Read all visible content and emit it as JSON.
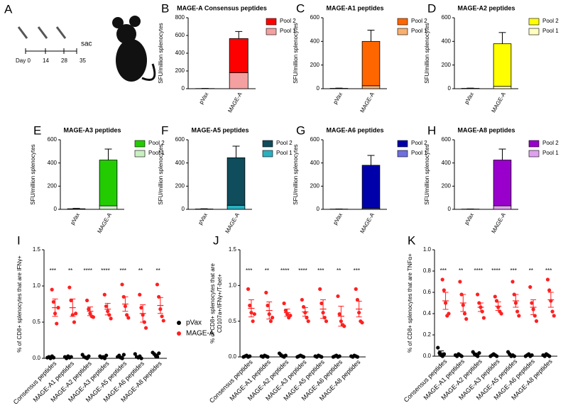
{
  "diagram": {
    "panel": "A",
    "days": [
      "Day 0",
      "14",
      "28",
      "35"
    ],
    "event": "sac"
  },
  "chart_data": [
    {
      "type": "bar",
      "panel": "B",
      "title": "MAGE-A Consensus peptides",
      "y_label": "SFU/million splenocytes",
      "categories": [
        "pVax",
        "MAGE-A"
      ],
      "ylim": [
        0,
        800
      ],
      "yticks": [
        0,
        200,
        400,
        600,
        800
      ],
      "series": [
        {
          "name": "Pool 1",
          "color": "#f4a0a0",
          "values": [
            1,
            180
          ],
          "errors": [
            0,
            15
          ]
        },
        {
          "name": "Pool 2",
          "color": "#ff0000",
          "values": [
            1,
            385
          ],
          "errors": [
            1,
            80
          ]
        }
      ]
    },
    {
      "type": "bar",
      "panel": "C",
      "title": "MAGE-A1 peptides",
      "y_label": "SFU/million splenocytes",
      "categories": [
        "pVax",
        "MAGE-A"
      ],
      "ylim": [
        0,
        600
      ],
      "yticks": [
        0,
        200,
        400,
        600
      ],
      "series": [
        {
          "name": "Pool 1",
          "color": "#f8b070",
          "values": [
            1,
            25
          ],
          "errors": [
            0,
            6
          ]
        },
        {
          "name": "Pool 2",
          "color": "#ff6600",
          "values": [
            2,
            375
          ],
          "errors": [
            2,
            95
          ]
        }
      ]
    },
    {
      "type": "bar",
      "panel": "D",
      "title": "MAGE-A2 peptides",
      "y_label": "SFU/million splenocytes",
      "categories": [
        "pVax",
        "MAGE-A"
      ],
      "ylim": [
        0,
        600
      ],
      "yticks": [
        0,
        200,
        400,
        600
      ],
      "series": [
        {
          "name": "Pool 1",
          "color": "#ffffc0",
          "values": [
            1,
            20
          ],
          "errors": [
            0,
            6
          ]
        },
        {
          "name": "Pool 2",
          "color": "#ffff00",
          "values": [
            2,
            360
          ],
          "errors": [
            2,
            95
          ]
        }
      ]
    },
    {
      "type": "bar",
      "panel": "E",
      "title": "MAGE-A3 peptides",
      "y_label": "SFU/million splenocytes",
      "categories": [
        "pVax",
        "MAGE-A"
      ],
      "ylim": [
        0,
        600
      ],
      "yticks": [
        0,
        200,
        400,
        600
      ],
      "series": [
        {
          "name": "Pool 1",
          "color": "#c8f0c0",
          "values": [
            2,
            30
          ],
          "errors": [
            1,
            8
          ]
        },
        {
          "name": "Pool 2",
          "color": "#22cc00",
          "values": [
            3,
            395
          ],
          "errors": [
            3,
            95
          ]
        }
      ]
    },
    {
      "type": "bar",
      "panel": "F",
      "title": "MAGE-A5 peptides",
      "y_label": "SFU/million splenocytes",
      "categories": [
        "pVax",
        "MAGE-A"
      ],
      "ylim": [
        0,
        600
      ],
      "yticks": [
        0,
        200,
        400,
        600
      ],
      "series": [
        {
          "name": "Pool 1",
          "color": "#2ab0c0",
          "values": [
            1,
            35
          ],
          "errors": [
            0,
            6
          ]
        },
        {
          "name": "Pool 2",
          "color": "#0f4c5c",
          "values": [
            2,
            410
          ],
          "errors": [
            2,
            100
          ]
        }
      ]
    },
    {
      "type": "bar",
      "panel": "G",
      "title": "MAGE-A6 peptides",
      "y_label": "SFU/million splenocytes",
      "categories": [
        "pVax",
        "MAGE-A"
      ],
      "ylim": [
        0,
        600
      ],
      "yticks": [
        0,
        200,
        400,
        600
      ],
      "series": [
        {
          "name": "Pool 1",
          "color": "#6f6fe0",
          "values": [
            1,
            10
          ],
          "errors": [
            0,
            4
          ]
        },
        {
          "name": "Pool 2",
          "color": "#0000aa",
          "values": [
            1,
            370
          ],
          "errors": [
            1,
            85
          ]
        }
      ]
    },
    {
      "type": "bar",
      "panel": "H",
      "title": "MAGE-A8 peptides",
      "y_label": "SFU/million splenocytes",
      "categories": [
        "pVax",
        "MAGE-A"
      ],
      "ylim": [
        0,
        600
      ],
      "yticks": [
        0,
        200,
        400,
        600
      ],
      "series": [
        {
          "name": "Pool 1",
          "color": "#e0a0f0",
          "values": [
            1,
            30
          ],
          "errors": [
            0,
            6
          ]
        },
        {
          "name": "Pool 2",
          "color": "#9900cc",
          "values": [
            1,
            395
          ],
          "errors": [
            1,
            95
          ]
        }
      ]
    },
    {
      "type": "dot",
      "panel": "I",
      "y_label": [
        "% of CD8+ splenocytes that are IFNγ+"
      ],
      "categories": [
        "Consensus peptides",
        "MAGE-A1 peptides",
        "MAGE-A2 peptides",
        "MAGE-A3 peptides",
        "MAGE-A5 peptides",
        "MAGE-A6 peptides",
        "MAGE-A8 peptides"
      ],
      "ylim": [
        0,
        1.5
      ],
      "yticks": [
        {
          "value": 0,
          "label": "0.0"
        },
        0.5,
        {
          "value": 1,
          "label": "1.0"
        },
        1.5
      ],
      "annotations": [
        "***",
        "**",
        "****",
        "****",
        "***",
        "**",
        "**"
      ],
      "series": [
        {
          "name": "pVax",
          "color": "#000000",
          "values": [
            [
              0.01,
              0.02,
              0.0,
              0.03,
              0.01
            ],
            [
              0.02,
              0.0,
              0.03,
              0.01,
              0.02
            ],
            [
              0.05,
              0.02,
              0.01,
              0.0,
              0.03
            ],
            [
              0.03,
              0.01,
              0.02,
              0.0,
              0.04
            ],
            [
              0.02,
              0.04,
              0.01,
              0.0,
              0.05
            ],
            [
              0.06,
              0.02,
              0.01,
              0.03,
              0.0
            ],
            [
              0.08,
              0.06,
              0.03,
              0.02,
              0.07
            ]
          ],
          "means": [
            0.01,
            0.02,
            0.02,
            0.02,
            0.02,
            0.02,
            0.05
          ],
          "errors": [
            0.01,
            0.01,
            0.01,
            0.01,
            0.01,
            0.01,
            0.01
          ]
        },
        {
          "name": "MAGE-A",
          "color": "#ff2020",
          "values": [
            [
              0.95,
              0.78,
              0.62,
              0.48,
              0.7
            ],
            [
              0.98,
              0.8,
              0.6,
              0.5,
              0.62
            ],
            [
              0.8,
              0.68,
              0.62,
              0.58,
              0.57
            ],
            [
              0.88,
              0.72,
              0.65,
              0.6,
              0.55
            ],
            [
              1.02,
              0.85,
              0.72,
              0.6,
              0.56
            ],
            [
              0.88,
              0.7,
              0.6,
              0.5,
              0.42
            ],
            [
              1.02,
              0.85,
              0.68,
              0.58,
              0.52
            ]
          ],
          "means": [
            0.7,
            0.7,
            0.65,
            0.68,
            0.75,
            0.62,
            0.73
          ],
          "errors": [
            0.12,
            0.12,
            0.06,
            0.08,
            0.1,
            0.12,
            0.11
          ]
        }
      ]
    },
    {
      "type": "dot",
      "panel": "J",
      "y_label": [
        "% of  CD8+ splenocytes that are",
        "CD107a+/IFNγ+/T-bet+"
      ],
      "categories": [
        "Consensus peptides",
        "MAGE-A1 peptides",
        "MAGE-A2 peptides",
        "MAGE-A3 peptides",
        "MAGE-A5 peptides",
        "MAGE-A6 peptides",
        "MAGE-A8 peptides"
      ],
      "ylim": [
        0,
        1.5
      ],
      "yticks": [
        {
          "value": 0,
          "label": "0.0"
        },
        0.5,
        {
          "value": 1,
          "label": "1.0"
        },
        1.5
      ],
      "annotations": [
        "***",
        "**",
        "****",
        "****",
        "***",
        "**",
        "***"
      ],
      "series": [
        {
          "color": "#000000",
          "values": [
            [
              0.0,
              0.01,
              0.02,
              0.0,
              0.01
            ],
            [
              0.01,
              0.0,
              0.02,
              0.01,
              0.0
            ],
            [
              0.05,
              0.03,
              0.01,
              0.0,
              0.02
            ],
            [
              0.0,
              0.01,
              0.02,
              0.01,
              0.0
            ],
            [
              0.01,
              0.0,
              0.02,
              0.01,
              0.0
            ],
            [
              0.0,
              0.01,
              0.02,
              0.0,
              0.01
            ],
            [
              0.01,
              0.0,
              0.02,
              0.01,
              0.0
            ]
          ],
          "means": [
            0.01,
            0.01,
            0.02,
            0.01,
            0.01,
            0.01,
            0.01
          ],
          "errors": [
            0.01,
            0.01,
            0.01,
            0.01,
            0.01,
            0.01,
            0.01
          ]
        },
        {
          "color": "#ff2020",
          "values": [
            [
              0.95,
              0.72,
              0.62,
              0.5,
              0.6
            ],
            [
              0.9,
              0.72,
              0.6,
              0.5,
              0.55
            ],
            [
              0.75,
              0.65,
              0.6,
              0.55,
              0.58
            ],
            [
              0.8,
              0.7,
              0.62,
              0.55,
              0.5
            ],
            [
              0.95,
              0.75,
              0.62,
              0.55,
              0.5
            ],
            [
              0.85,
              0.6,
              0.5,
              0.45,
              0.43
            ],
            [
              0.95,
              0.8,
              0.62,
              0.5,
              0.48
            ]
          ],
          "means": [
            0.68,
            0.65,
            0.62,
            0.63,
            0.67,
            0.57,
            0.67
          ],
          "errors": [
            0.12,
            0.12,
            0.05,
            0.06,
            0.13,
            0.14,
            0.11
          ]
        }
      ]
    },
    {
      "type": "dot",
      "panel": "K",
      "y_label": [
        "% of CD8+ splenocytes that are TNFα+"
      ],
      "categories": [
        "Consensus peptides",
        "MAGE-A1 peptides",
        "MAGE-A2 peptides",
        "MAGE-A3 peptides",
        "MAGE-A5 peptides",
        "MAGE-A6 peptides",
        "MAGE-A8 peptides"
      ],
      "ylim": [
        0,
        1
      ],
      "yticks": [
        {
          "value": 0,
          "label": "0.0"
        },
        0.2,
        0.4,
        0.6,
        0.8,
        {
          "value": 1,
          "label": "1.0"
        }
      ],
      "annotations": [
        "***",
        "**",
        "****",
        "****",
        "***",
        "**",
        "***"
      ],
      "series": [
        {
          "color": "#000000",
          "values": [
            [
              0.08,
              0.03,
              0.01,
              0.0,
              0.02
            ],
            [
              0.01,
              0.0,
              0.02,
              0.01,
              0.0
            ],
            [
              0.04,
              0.02,
              0.01,
              0.0,
              0.03
            ],
            [
              0.0,
              0.01,
              0.02,
              0.01,
              0.0
            ],
            [
              0.04,
              0.02,
              0.0,
              0.01,
              0.0
            ],
            [
              0.0,
              0.01,
              0.02,
              0.0,
              0.01
            ],
            [
              0.01,
              0.0,
              0.02,
              0.01,
              0.0
            ]
          ],
          "means": [
            0.03,
            0.01,
            0.02,
            0.01,
            0.01,
            0.01,
            0.01
          ],
          "errors": [
            0.02,
            0.01,
            0.01,
            0.01,
            0.01,
            0.01,
            0.01
          ]
        },
        {
          "color": "#ff2020",
          "values": [
            [
              0.72,
              0.62,
              0.5,
              0.38,
              0.4
            ],
            [
              0.7,
              0.58,
              0.48,
              0.4,
              0.35
            ],
            [
              0.58,
              0.5,
              0.46,
              0.42,
              0.36
            ],
            [
              0.56,
              0.52,
              0.46,
              0.42,
              0.4
            ],
            [
              0.7,
              0.58,
              0.5,
              0.42,
              0.38
            ],
            [
              0.65,
              0.5,
              0.44,
              0.38,
              0.33
            ],
            [
              0.72,
              0.62,
              0.52,
              0.42,
              0.38
            ]
          ],
          "means": [
            0.52,
            0.5,
            0.46,
            0.47,
            0.52,
            0.46,
            0.53
          ],
          "errors": [
            0.08,
            0.08,
            0.04,
            0.04,
            0.06,
            0.07,
            0.07
          ]
        }
      ]
    }
  ]
}
